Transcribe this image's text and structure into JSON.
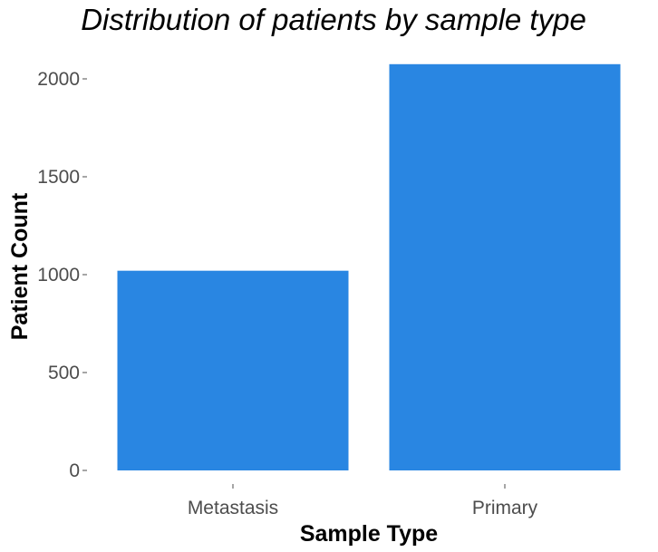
{
  "chart_data": {
    "type": "bar",
    "title": "Distribution of patients by sample type",
    "xlabel": "Sample Type",
    "ylabel": "Patient Count",
    "categories": [
      "Metastasis",
      "Primary"
    ],
    "values": [
      1020,
      2075
    ],
    "ylim": [
      0,
      2100
    ],
    "yticks": [
      0,
      500,
      1000,
      1500,
      2000
    ],
    "grid": false,
    "colors": {
      "bar": "#2986e2"
    }
  }
}
